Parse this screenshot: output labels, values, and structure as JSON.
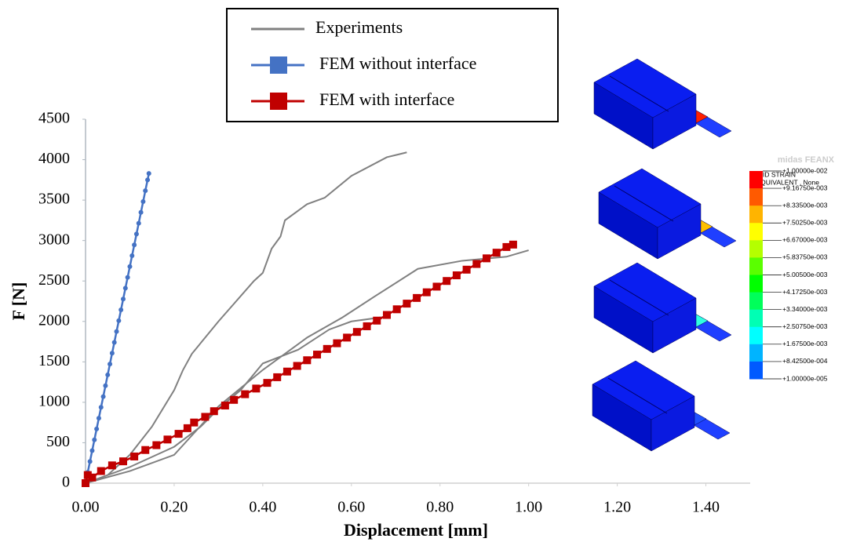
{
  "chart_data": {
    "type": "line",
    "xlabel": "Displacement [mm]",
    "ylabel": "F [N]",
    "xlim": [
      0,
      1.5
    ],
    "ylim": [
      0,
      4500
    ],
    "xticks": [
      {
        "value": 0,
        "label": "0.00"
      },
      {
        "value": 0.2,
        "label": "0.20"
      },
      {
        "value": 0.4,
        "label": "0.40"
      },
      {
        "value": 0.6,
        "label": "0.60"
      },
      {
        "value": 0.8,
        "label": "0.80"
      },
      {
        "value": 1,
        "label": "1.00"
      },
      {
        "value": 1.2,
        "label": "1.20"
      },
      {
        "value": 1.4,
        "label": "1.40"
      }
    ],
    "yticks": [
      0,
      500,
      1000,
      1500,
      2000,
      2500,
      3000,
      3500,
      4000,
      4500
    ],
    "grid": false,
    "series": [
      {
        "name": "Experiments",
        "color": "#808080",
        "marker": "none",
        "x": [
          0,
          0.05,
          0.1,
          0.15,
          0.2,
          0.22,
          0.24,
          0.3,
          0.34,
          0.38,
          0.4,
          0.42,
          0.44,
          0.45,
          0.5,
          0.54,
          0.6,
          0.68,
          0.725,
          null,
          0,
          0.1,
          0.2,
          0.26,
          0.3,
          0.35,
          0.4,
          0.48,
          0.55,
          0.6,
          0.68,
          null,
          0,
          0.1,
          0.2,
          0.3,
          0.4,
          0.5,
          0.58,
          0.65,
          0.75,
          0.85,
          0.95,
          1.0
        ],
        "values": [
          0,
          100,
          350,
          700,
          1150,
          1400,
          1600,
          2000,
          2250,
          2500,
          2600,
          2900,
          3050,
          3250,
          3450,
          3530,
          3800,
          4030,
          4090,
          null,
          0,
          200,
          450,
          700,
          920,
          1150,
          1480,
          1650,
          1900,
          2000,
          2060,
          null,
          0,
          150,
          350,
          950,
          1400,
          1800,
          2050,
          2300,
          2650,
          2750,
          2800,
          2880
        ]
      },
      {
        "name": "FEM without interface",
        "color": "#4472c4",
        "marker": "circle",
        "x": [
          0,
          0.005,
          0.01,
          0.015,
          0.02,
          0.025,
          0.03,
          0.035,
          0.04,
          0.045,
          0.05,
          0.055,
          0.06,
          0.065,
          0.07,
          0.075,
          0.08,
          0.085,
          0.09,
          0.095,
          0.1,
          0.105,
          0.11,
          0.115,
          0.12,
          0.125,
          0.13,
          0.135,
          0.14,
          0.143
        ],
        "values": [
          0,
          134,
          268,
          402,
          536,
          670,
          804,
          938,
          1071,
          1205,
          1339,
          1473,
          1607,
          1741,
          1875,
          2009,
          2143,
          2277,
          2411,
          2545,
          2678,
          2812,
          2946,
          3080,
          3214,
          3348,
          3482,
          3616,
          3750,
          3830
        ]
      },
      {
        "name": "FEM with interface",
        "color": "#c00000",
        "marker": "square",
        "x": [
          0,
          0.005,
          0.015,
          0.035,
          0.06,
          0.085,
          0.11,
          0.135,
          0.16,
          0.185,
          0.21,
          0.23,
          0.245,
          0.27,
          0.29,
          0.315,
          0.335,
          0.36,
          0.385,
          0.41,
          0.4325,
          0.455,
          0.4775,
          0.5,
          0.5225,
          0.545,
          0.5675,
          0.59,
          0.6125,
          0.635,
          0.6575,
          0.68,
          0.7025,
          0.725,
          0.7475,
          0.77,
          0.7925,
          0.815,
          0.8375,
          0.86,
          0.8825,
          0.905,
          0.9275,
          0.95,
          0.965
        ],
        "values": [
          0,
          100,
          70,
          150,
          220,
          270,
          330,
          410,
          470,
          540,
          610,
          680,
          750,
          820,
          890,
          960,
          1030,
          1100,
          1170,
          1240,
          1310,
          1380,
          1450,
          1520,
          1590,
          1660,
          1730,
          1800,
          1870,
          1940,
          2010,
          2080,
          2150,
          2220,
          2290,
          2360,
          2430,
          2500,
          2570,
          2640,
          2710,
          2780,
          2850,
          2920,
          2950
        ]
      }
    ]
  },
  "inset": {
    "brand": "midas FEANX",
    "title": [
      "SOLID STRAIN",
      "E-EQUIVALENT , None"
    ],
    "labels": [
      "+1.00000e-002",
      "+9.16750e-003",
      "+8.33500e-003",
      "+7.50250e-003",
      "+6.67000e-003",
      "+5.83750e-003",
      "+5.00500e-003",
      "+4.17250e-003",
      "+3.34000e-003",
      "+2.50750e-003",
      "+1.67500e-003",
      "+8.42500e-004",
      "+1.00000e-005"
    ],
    "colors": [
      "#ff0000",
      "#ff5a00",
      "#ffb400",
      "#ffff00",
      "#b4ff00",
      "#5aff00",
      "#00ff00",
      "#00ff5a",
      "#00ffb4",
      "#00ffff",
      "#00b4ff",
      "#005aff"
    ]
  }
}
